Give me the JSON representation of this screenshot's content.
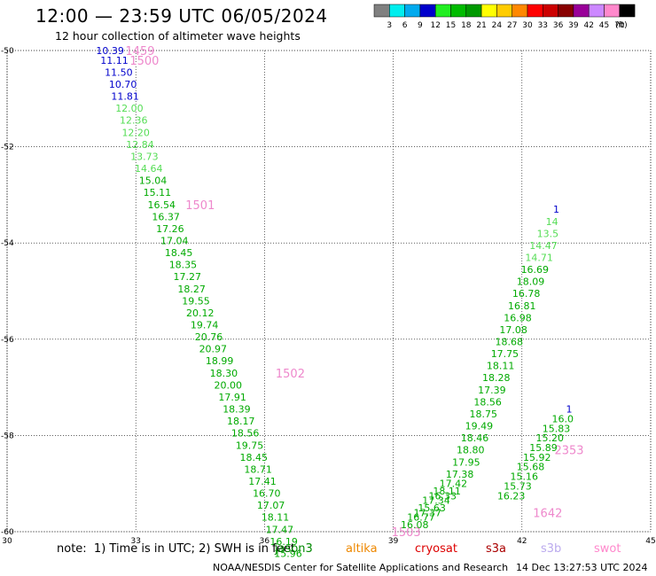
{
  "header": {
    "title": "12:00 — 23:59 UTC 06/05/2024",
    "subtitle": "12 hour collection of altimeter wave heights"
  },
  "colorbar": {
    "labels": [
      "3",
      "6",
      "9",
      "12",
      "15",
      "18",
      "21",
      "24",
      "27",
      "30",
      "33",
      "36",
      "39",
      "42",
      "45",
      "70",
      "(ft)"
    ],
    "colors": [
      "#808080",
      "#00eeee",
      "#00aaee",
      "#0000cc",
      "#22ee22",
      "#00bb00",
      "#009900",
      "#ffff00",
      "#ffcc00",
      "#ff8800",
      "#ff0000",
      "#cc0000",
      "#880000",
      "#990099",
      "#cc88ff",
      "#ff88cc",
      "#000000"
    ]
  },
  "chart_data": {
    "type": "scatter",
    "xlim": [
      30,
      45
    ],
    "ylim": [
      -60,
      -50
    ],
    "xticks": [
      "30",
      "33",
      "36",
      "39",
      "42",
      "45"
    ],
    "yticks": [
      "-50",
      "-52",
      "-54",
      "-56",
      "-58",
      "-60"
    ],
    "grid": true,
    "color_scale": [
      {
        "max": 12,
        "color": "#0000cc"
      },
      {
        "max": 15,
        "color": "#55dd55"
      },
      {
        "max": 21,
        "color": "#00aa00"
      }
    ],
    "tracks": [
      {
        "time_labels": [
          {
            "text": "1459",
            "x": 33.1,
            "y": -50.0
          },
          {
            "text": "1500",
            "x": 33.2,
            "y": -50.2
          },
          {
            "text": "1501",
            "x": 34.5,
            "y": -53.2
          },
          {
            "text": "1502",
            "x": 36.6,
            "y": -56.7
          },
          {
            "text": "1503",
            "x": 39.3,
            "y": -60.0
          }
        ],
        "points": [
          {
            "x": 32.4,
            "y": -50.0,
            "v": "10.39"
          },
          {
            "x": 32.5,
            "y": -50.2,
            "v": "11.11"
          },
          {
            "x": 32.6,
            "y": -50.45,
            "v": "11.50"
          },
          {
            "x": 32.7,
            "y": -50.7,
            "v": "10.70"
          },
          {
            "x": 32.75,
            "y": -50.95,
            "v": "11.81"
          },
          {
            "x": 32.85,
            "y": -51.2,
            "v": "12.00"
          },
          {
            "x": 32.95,
            "y": -51.45,
            "v": "12.36"
          },
          {
            "x": 33.0,
            "y": -51.7,
            "v": "12.20"
          },
          {
            "x": 33.1,
            "y": -51.95,
            "v": "12.84"
          },
          {
            "x": 33.2,
            "y": -52.2,
            "v": "13.73"
          },
          {
            "x": 33.3,
            "y": -52.45,
            "v": "14.64"
          },
          {
            "x": 33.4,
            "y": -52.7,
            "v": "15.04"
          },
          {
            "x": 33.5,
            "y": -52.95,
            "v": "15.11"
          },
          {
            "x": 33.6,
            "y": -53.2,
            "v": "16.54"
          },
          {
            "x": 33.7,
            "y": -53.45,
            "v": "16.37"
          },
          {
            "x": 33.8,
            "y": -53.7,
            "v": "17.26"
          },
          {
            "x": 33.9,
            "y": -53.95,
            "v": "17.04"
          },
          {
            "x": 34.0,
            "y": -54.2,
            "v": "18.45"
          },
          {
            "x": 34.1,
            "y": -54.45,
            "v": "18.35"
          },
          {
            "x": 34.2,
            "y": -54.7,
            "v": "17.27"
          },
          {
            "x": 34.3,
            "y": -54.95,
            "v": "18.27"
          },
          {
            "x": 34.4,
            "y": -55.2,
            "v": "19.55"
          },
          {
            "x": 34.5,
            "y": -55.45,
            "v": "20.12"
          },
          {
            "x": 34.6,
            "y": -55.7,
            "v": "19.74"
          },
          {
            "x": 34.7,
            "y": -55.95,
            "v": "20.76"
          },
          {
            "x": 34.8,
            "y": -56.2,
            "v": "20.97"
          },
          {
            "x": 34.95,
            "y": -56.45,
            "v": "18.99"
          },
          {
            "x": 35.05,
            "y": -56.7,
            "v": "18.30"
          },
          {
            "x": 35.15,
            "y": -56.95,
            "v": "20.00"
          },
          {
            "x": 35.25,
            "y": -57.2,
            "v": "17.91"
          },
          {
            "x": 35.35,
            "y": -57.45,
            "v": "18.39"
          },
          {
            "x": 35.45,
            "y": -57.7,
            "v": "18.17"
          },
          {
            "x": 35.55,
            "y": -57.95,
            "v": "18.56"
          },
          {
            "x": 35.65,
            "y": -58.2,
            "v": "19.75"
          },
          {
            "x": 35.75,
            "y": -58.45,
            "v": "18.45"
          },
          {
            "x": 35.85,
            "y": -58.7,
            "v": "18.71"
          },
          {
            "x": 35.95,
            "y": -58.95,
            "v": "17.41"
          },
          {
            "x": 36.05,
            "y": -59.2,
            "v": "16.70"
          },
          {
            "x": 36.15,
            "y": -59.45,
            "v": "17.07"
          },
          {
            "x": 36.25,
            "y": -59.7,
            "v": "18.11"
          },
          {
            "x": 36.35,
            "y": -59.95,
            "v": "17.47"
          },
          {
            "x": 36.45,
            "y": -60.2,
            "v": "16.19"
          },
          {
            "x": 36.55,
            "y": -60.45,
            "v": "15.96"
          }
        ]
      },
      {
        "time_labels": [
          {
            "text": "2353",
            "x": 43.1,
            "y": -58.3
          },
          {
            "text": "1642",
            "x": 42.6,
            "y": -59.6
          }
        ],
        "points": [
          {
            "x": 39.5,
            "y": -59.85,
            "v": "16.08"
          },
          {
            "x": 39.65,
            "y": -59.7,
            "v": "16.77"
          },
          {
            "x": 39.8,
            "y": -59.6,
            "v": "17.37"
          },
          {
            "x": 39.9,
            "y": -59.5,
            "v": "15.63"
          },
          {
            "x": 40.0,
            "y": -59.35,
            "v": "17.34"
          },
          {
            "x": 40.15,
            "y": -59.25,
            "v": "16.33"
          },
          {
            "x": 40.25,
            "y": -59.15,
            "v": "18.11"
          },
          {
            "x": 40.4,
            "y": -59.0,
            "v": "17.42"
          },
          {
            "x": 40.55,
            "y": -58.8,
            "v": "17.38"
          },
          {
            "x": 40.7,
            "y": -58.55,
            "v": "17.95"
          },
          {
            "x": 40.8,
            "y": -58.3,
            "v": "18.80"
          },
          {
            "x": 40.9,
            "y": -58.05,
            "v": "18.46"
          },
          {
            "x": 41.0,
            "y": -57.8,
            "v": "19.49"
          },
          {
            "x": 41.1,
            "y": -57.55,
            "v": "18.75"
          },
          {
            "x": 41.2,
            "y": -57.3,
            "v": "18.56"
          },
          {
            "x": 41.3,
            "y": -57.05,
            "v": "17.39"
          },
          {
            "x": 41.4,
            "y": -56.8,
            "v": "18.28"
          },
          {
            "x": 41.5,
            "y": -56.55,
            "v": "18.11"
          },
          {
            "x": 41.6,
            "y": -56.3,
            "v": "17.75"
          },
          {
            "x": 41.7,
            "y": -56.05,
            "v": "18.68"
          },
          {
            "x": 41.8,
            "y": -55.8,
            "v": "17.08"
          },
          {
            "x": 41.9,
            "y": -55.55,
            "v": "16.98"
          },
          {
            "x": 42.0,
            "y": -55.3,
            "v": "16.81"
          },
          {
            "x": 42.1,
            "y": -55.05,
            "v": "16.78"
          },
          {
            "x": 42.2,
            "y": -54.8,
            "v": "18.09"
          },
          {
            "x": 42.3,
            "y": -54.55,
            "v": "16.69"
          },
          {
            "x": 42.4,
            "y": -54.3,
            "v": "14.71"
          },
          {
            "x": 42.5,
            "y": -54.05,
            "v": "14.47"
          },
          {
            "x": 42.6,
            "y": -53.8,
            "v": "13.5"
          },
          {
            "x": 42.7,
            "y": -53.55,
            "v": "14"
          },
          {
            "x": 42.8,
            "y": -53.3,
            "v": "1"
          }
        ]
      },
      {
        "time_labels": [],
        "points": [
          {
            "x": 41.75,
            "y": -59.25,
            "v": "16.23"
          },
          {
            "x": 41.9,
            "y": -59.05,
            "v": "15.73"
          },
          {
            "x": 42.05,
            "y": -58.85,
            "v": "15.16"
          },
          {
            "x": 42.2,
            "y": -58.65,
            "v": "15.68"
          },
          {
            "x": 42.35,
            "y": -58.45,
            "v": "15.92"
          },
          {
            "x": 42.5,
            "y": -58.25,
            "v": "15.89"
          },
          {
            "x": 42.65,
            "y": -58.05,
            "v": "15.20"
          },
          {
            "x": 42.8,
            "y": -57.85,
            "v": "15.83"
          },
          {
            "x": 42.95,
            "y": -57.65,
            "v": "16.0"
          },
          {
            "x": 43.1,
            "y": -57.45,
            "v": "1"
          }
        ]
      }
    ]
  },
  "footer": {
    "note": "note:  1) Time is in UTC; 2) SWH is in feet",
    "satellites": [
      {
        "name": "jason3",
        "color": "#008800"
      },
      {
        "name": "altika",
        "color": "#ee8800"
      },
      {
        "name": "cryosat",
        "color": "#dd0000"
      },
      {
        "name": "s3a",
        "color": "#aa0000"
      },
      {
        "name": "s3b",
        "color": "#bbaaee"
      },
      {
        "name": "swot",
        "color": "#ff88cc"
      }
    ],
    "credit": "NOAA/NESDIS Center for Satellite Applications and Research",
    "timestamp": "14 Dec 13:27:53 UTC 2024"
  }
}
